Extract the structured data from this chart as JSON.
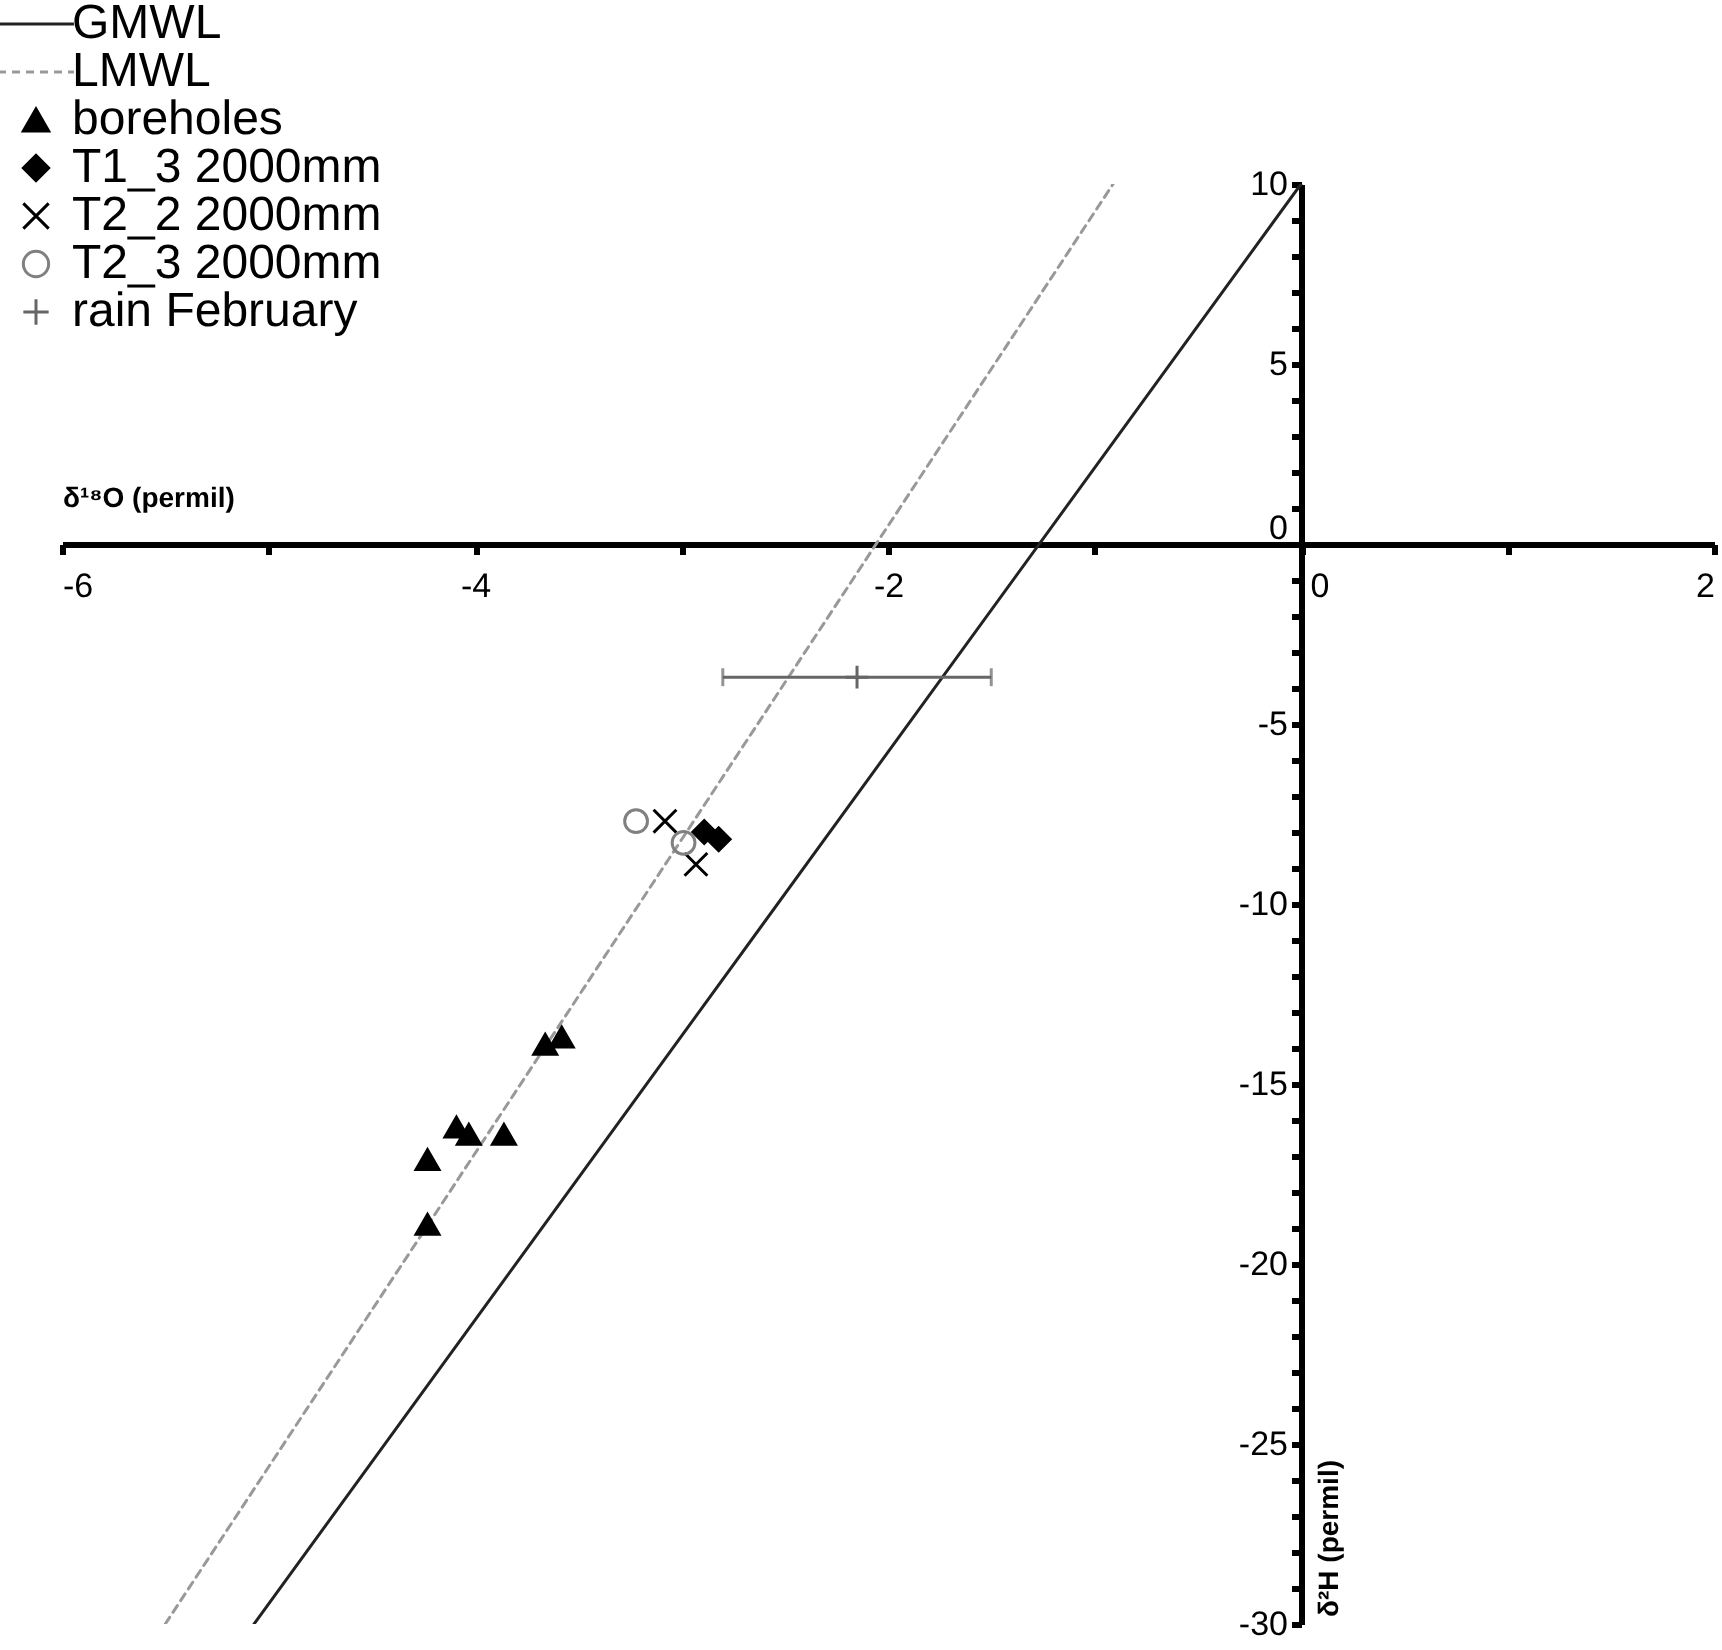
{
  "chart_data": {
    "type": "scatter",
    "xlabel": "δ¹⁸O (permil)",
    "ylabel": "δ²H (permil)",
    "legend": "top left",
    "grid": false,
    "xlim": [
      -6,
      2
    ],
    "ylim": [
      -30,
      10
    ],
    "xticks": [
      -6,
      {
        "value": -5,
        "label": null
      },
      -4,
      {
        "value": -3,
        "label": null
      },
      -2,
      {
        "value": -1,
        "label": null
      },
      0,
      {
        "value": 1,
        "label": null
      },
      2
    ],
    "yticks": [
      -30,
      {
        "value": -29,
        "label": null
      },
      {
        "value": -28,
        "label": null
      },
      {
        "value": -27,
        "label": null
      },
      {
        "value": -26,
        "label": null
      },
      -25,
      {
        "value": -24,
        "label": null
      },
      {
        "value": -23,
        "label": null
      },
      {
        "value": -22,
        "label": null
      },
      {
        "value": -21,
        "label": null
      },
      -20,
      {
        "value": -19,
        "label": null
      },
      {
        "value": -18,
        "label": null
      },
      {
        "value": -17,
        "label": null
      },
      {
        "value": -16,
        "label": null
      },
      -15,
      {
        "value": -14,
        "label": null
      },
      {
        "value": -13,
        "label": null
      },
      {
        "value": -12,
        "label": null
      },
      {
        "value": -11,
        "label": null
      },
      -10,
      {
        "value": -9,
        "label": null
      },
      {
        "value": -8,
        "label": null
      },
      {
        "value": -7,
        "label": null
      },
      {
        "value": -6,
        "label": null
      },
      -5,
      {
        "value": -4,
        "label": null
      },
      {
        "value": -3,
        "label": null
      },
      {
        "value": -2,
        "label": null
      },
      {
        "value": -1,
        "label": null
      },
      0,
      {
        "value": 1,
        "label": null
      },
      {
        "value": 2,
        "label": null
      },
      {
        "value": 3,
        "label": null
      },
      {
        "value": 4,
        "label": null
      },
      5,
      {
        "value": 6,
        "label": null
      },
      {
        "value": 7,
        "label": null
      },
      {
        "value": 8,
        "label": null
      },
      {
        "value": 9,
        "label": null
      },
      10
    ],
    "series": [
      {
        "name": "GMWL",
        "type": "line",
        "color": "#222222",
        "line_style": "solid",
        "x": [
          -5.07,
          0
        ],
        "values": [
          -30,
          10
        ]
      },
      {
        "name": "LMWL",
        "type": "line",
        "color": "#999999",
        "line_style": "dashed",
        "x": [
          -5.5,
          -0.91
        ],
        "values": [
          -30,
          10
        ]
      },
      {
        "name": "boreholes",
        "marker": "triangle",
        "color": "#000000",
        "x": [
          -3.66,
          -3.58,
          -4.09,
          -4.03,
          -3.86,
          -4.23,
          -4.23
        ],
        "values": [
          -13.9,
          -13.7,
          -16.2,
          -16.4,
          -16.4,
          -17.1,
          -18.9
        ]
      },
      {
        "name": "T1_3 2000mm",
        "marker": "diamond",
        "color": "#000000",
        "x": [
          -2.89,
          -2.82
        ],
        "values": [
          -8.0,
          -8.2
        ]
      },
      {
        "name": "T2_2 2000mm",
        "marker": "cross",
        "color": "#000000",
        "x": [
          -3.08,
          -2.93
        ],
        "values": [
          -7.7,
          -8.9
        ]
      },
      {
        "name": "T2_3 2000mm",
        "marker": "circle",
        "color": "#808080",
        "x": [
          -3.22,
          -2.99
        ],
        "values": [
          -7.7,
          -8.3
        ]
      },
      {
        "name": "rain February",
        "marker": "cross",
        "color": "#666666",
        "x": [
          -2.15
        ],
        "values": [
          -3.7
        ],
        "xerrors": [
          [
            -2.8,
            -1.5
          ]
        ]
      }
    ]
  }
}
